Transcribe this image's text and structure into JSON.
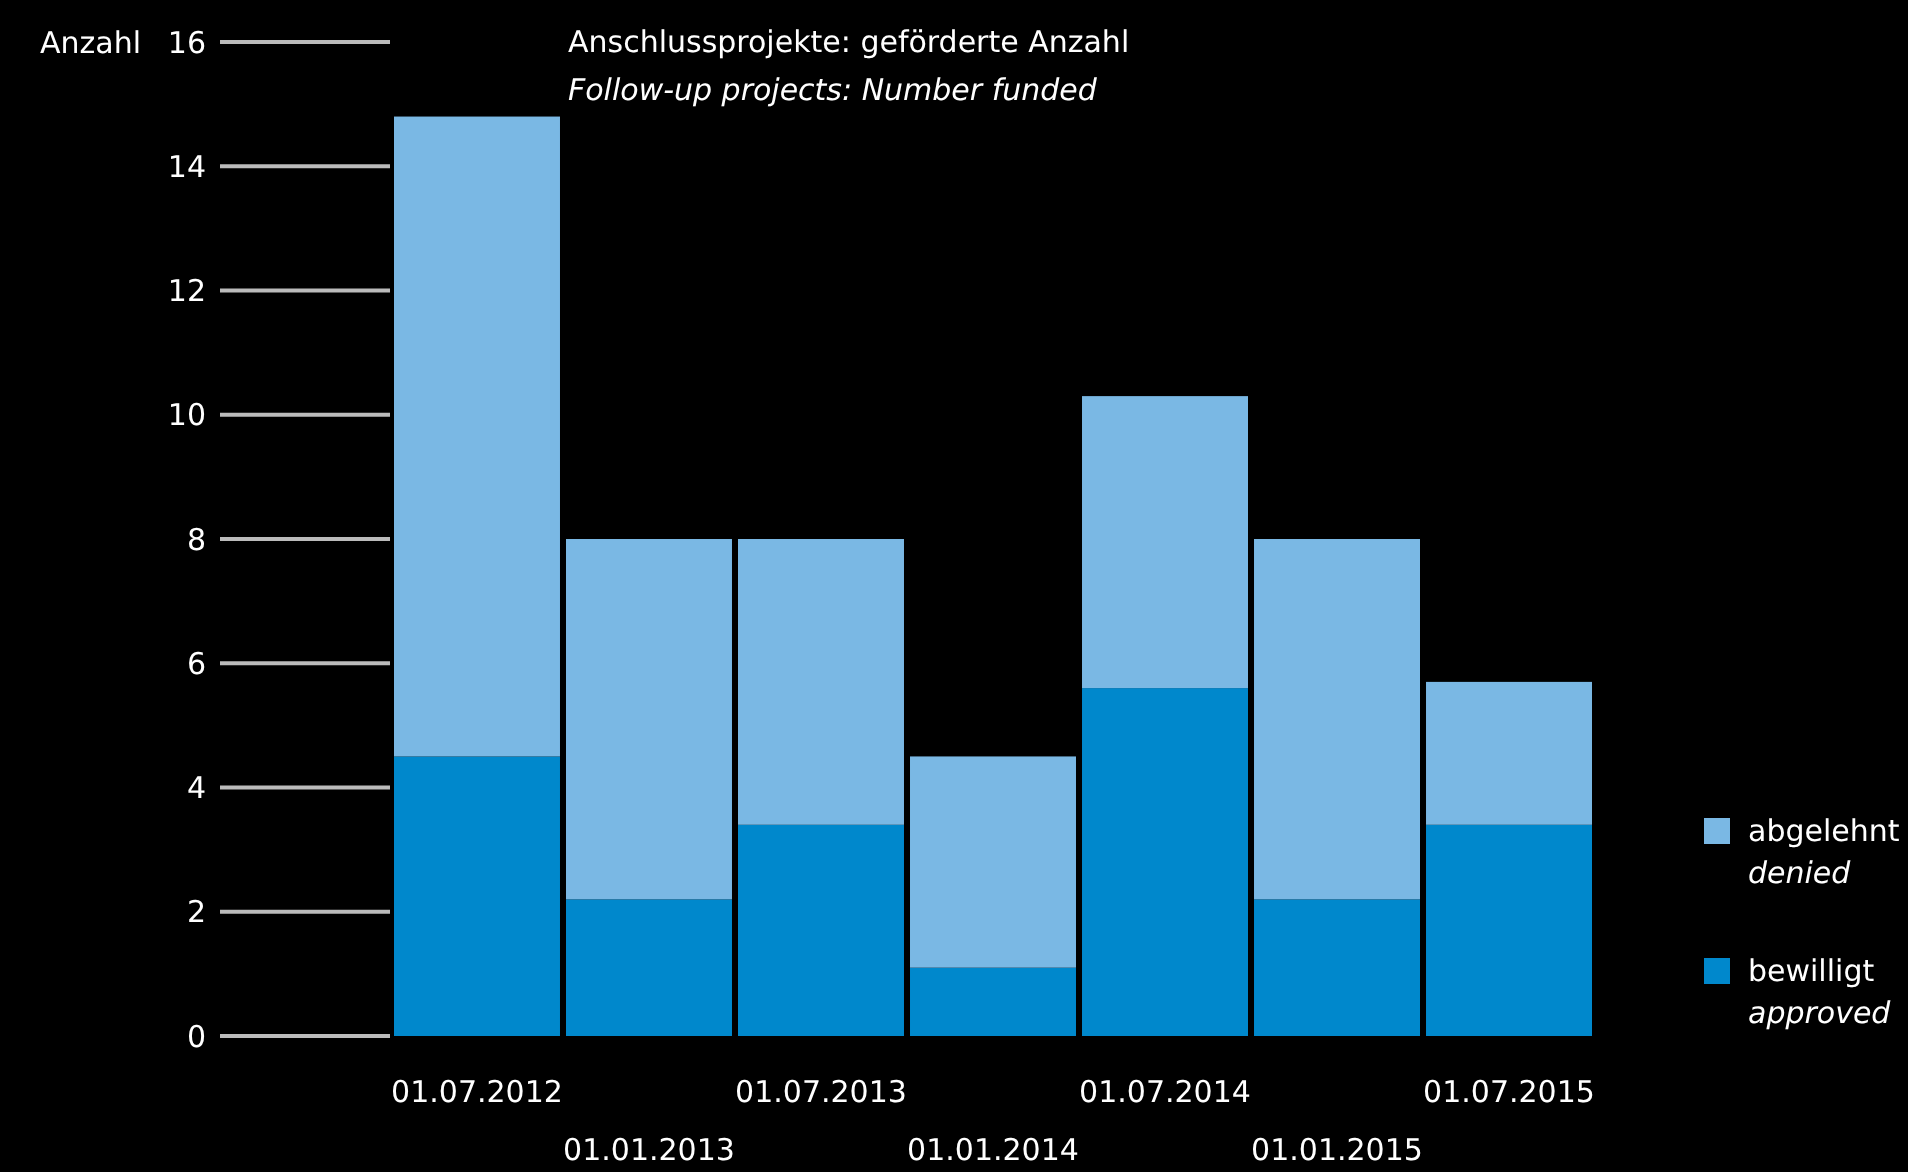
{
  "chart_data": {
    "type": "bar",
    "stacked": true,
    "title": "Anschlussprojekte: geförderte Anzahl",
    "subtitle": "Follow-up projects: Number funded",
    "ylabel": "Anzahl",
    "categories": [
      "01.07.2012",
      "01.01.2013",
      "01.07.2013",
      "01.01.2014",
      "01.07.2014",
      "01.01.2015",
      "01.07.2015"
    ],
    "series": [
      {
        "name": "bewilligt\napproved",
        "color": "#0088cc",
        "values": [
          4.5,
          2.2,
          3.4,
          1.1,
          5.6,
          2.2,
          3.4
        ]
      },
      {
        "name": "abgelehnt\ndenied",
        "color": "#7ab8e4",
        "values": [
          10.3,
          5.8,
          4.6,
          3.4,
          4.7,
          5.8,
          2.3
        ]
      }
    ],
    "ylim": [
      0,
      16
    ],
    "yticks": [
      0,
      2,
      4,
      6,
      8,
      10,
      12,
      14,
      16
    ],
    "grid": false,
    "legend": "bottom right"
  }
}
